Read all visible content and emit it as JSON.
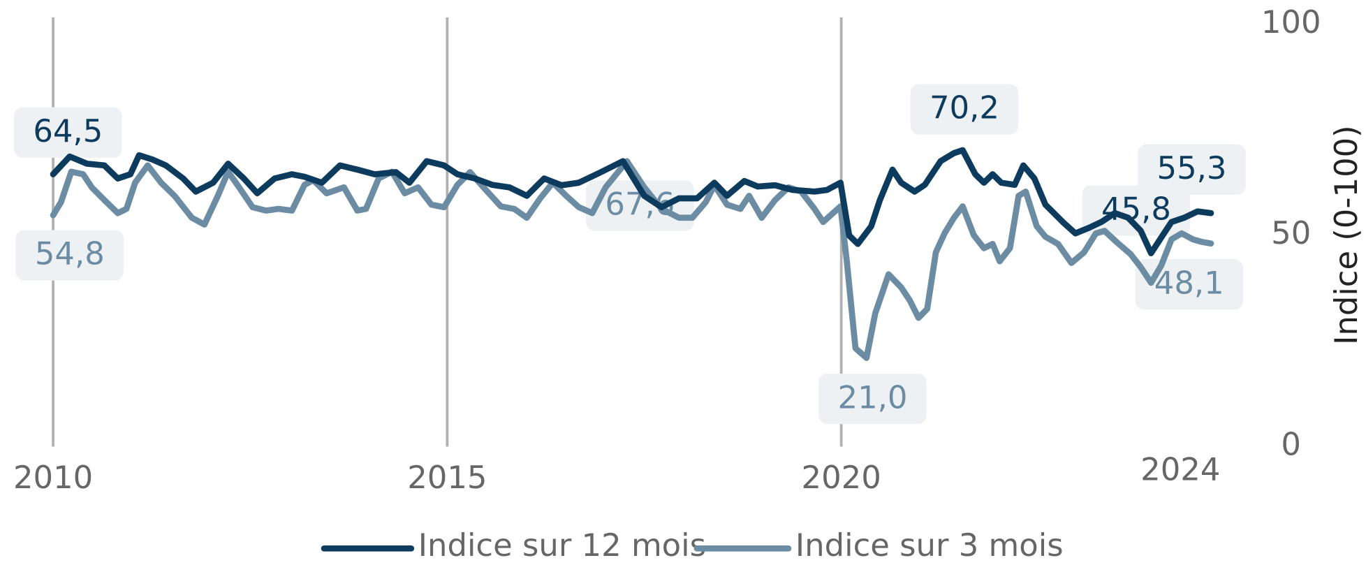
{
  "chart_data": {
    "type": "line",
    "y_axis_title": "Indice (0-100)",
    "ylim": [
      0,
      100
    ],
    "yticks": [
      0,
      50,
      100
    ],
    "y_axis_side": "right",
    "xlim": [
      2010,
      2024.69
    ],
    "xticks": [
      2010,
      2015,
      2020
    ],
    "x_end_label": "2024",
    "grid": "x",
    "legend": "bottom",
    "series": [
      {
        "name": "Indice sur 12 mois",
        "color": "#0d3b5e",
        "x": [
          2010,
          2010.21,
          2010.43,
          2010.65,
          2010.82,
          2010.98,
          2011.09,
          2011.26,
          2011.43,
          2011.65,
          2011.81,
          2012.03,
          2012.22,
          2012.42,
          2012.59,
          2012.81,
          2013.03,
          2013.19,
          2013.41,
          2013.64,
          2013.86,
          2014.08,
          2014.35,
          2014.52,
          2014.74,
          2014.96,
          2015.13,
          2015.35,
          2015.57,
          2015.79,
          2016.01,
          2016.23,
          2016.45,
          2016.67,
          2016.95,
          2017.23,
          2017.5,
          2017.72,
          2017.94,
          2018.17,
          2018.39,
          2018.55,
          2018.77,
          2018.94,
          2019.16,
          2019.38,
          2019.66,
          2019.82,
          2019.99,
          2020.1,
          2020.21,
          2020.38,
          2020.49,
          2020.65,
          2020.76,
          2020.93,
          2021.06,
          2021.26,
          2021.43,
          2021.54,
          2021.7,
          2021.81,
          2021.92,
          2022.03,
          2022.2,
          2022.31,
          2022.45,
          2022.59,
          2022.81,
          2022.97,
          2023.14,
          2023.3,
          2023.47,
          2023.64,
          2023.8,
          2023.93,
          2024.08,
          2024.19,
          2024.35,
          2024.52,
          2024.69
        ],
        "values": [
          64.5,
          68.7,
          67,
          66.6,
          63.5,
          64.5,
          69,
          68,
          66.6,
          63.5,
          60.4,
          62.5,
          67,
          63.5,
          60,
          63.5,
          64.5,
          63.9,
          62.5,
          66.6,
          65.6,
          64.5,
          65,
          62.5,
          67.6,
          66.6,
          64.5,
          63.5,
          62,
          61.4,
          59.4,
          63.5,
          61.9,
          62.5,
          65,
          67.6,
          59.4,
          56.7,
          58.8,
          58.8,
          62.5,
          59.4,
          62.9,
          61.6,
          61.9,
          60.8,
          60.4,
          60.8,
          62.5,
          50,
          48,
          52.2,
          58.4,
          65.6,
          62.5,
          60.4,
          62,
          67.6,
          69.5,
          70.2,
          64.5,
          62.5,
          64.5,
          62.5,
          62,
          66.6,
          63.5,
          57.3,
          53.2,
          50.5,
          51.8,
          53.2,
          55.3,
          54.2,
          51.1,
          45.8,
          50.1,
          53.2,
          54.2,
          55.7,
          55.3
        ],
        "value_labels": [
          "64,5",
          null,
          null,
          null,
          null,
          null,
          null,
          null,
          null,
          null,
          null,
          null,
          null,
          null,
          null,
          null,
          null,
          null,
          null,
          null,
          null,
          null,
          null,
          null,
          null,
          null,
          null,
          null,
          null,
          null,
          null,
          null,
          null,
          null,
          null,
          null,
          null,
          null,
          null,
          null,
          null,
          null,
          null,
          null,
          null,
          null,
          null,
          null,
          null,
          null,
          null,
          null,
          null,
          null,
          null,
          null,
          null,
          null,
          null,
          "70,2",
          null,
          null,
          null,
          null,
          null,
          null,
          null,
          null,
          null,
          null,
          null,
          null,
          null,
          null,
          null,
          "45,8",
          null,
          null,
          null,
          null,
          "55,3"
        ]
      },
      {
        "name": "Indice sur 3 mois",
        "color": "#6b8ca3",
        "x": [
          2010,
          2010.1,
          2010.23,
          2010.38,
          2010.49,
          2010.65,
          2010.82,
          2010.93,
          2011.04,
          2011.2,
          2011.37,
          2011.54,
          2011.76,
          2011.92,
          2012.09,
          2012.22,
          2012.36,
          2012.53,
          2012.7,
          2012.86,
          2013.03,
          2013.19,
          2013.3,
          2013.47,
          2013.69,
          2013.86,
          2013.97,
          2014.13,
          2014.3,
          2014.46,
          2014.63,
          2014.8,
          2014.96,
          2015.13,
          2015.29,
          2015.46,
          2015.68,
          2015.85,
          2016.01,
          2016.18,
          2016.34,
          2016.51,
          2016.67,
          2016.84,
          2017.01,
          2017.28,
          2017.5,
          2017.72,
          2017.94,
          2018.11,
          2018.28,
          2018.39,
          2018.55,
          2018.72,
          2018.83,
          2018.99,
          2019.16,
          2019.33,
          2019.49,
          2019.66,
          2019.77,
          2019.99,
          2020.07,
          2020.18,
          2020.32,
          2020.43,
          2020.6,
          2020.76,
          2020.87,
          2020.98,
          2021.09,
          2021.2,
          2021.31,
          2021.43,
          2021.54,
          2021.68,
          2021.81,
          2021.92,
          2022.01,
          2022.14,
          2022.25,
          2022.34,
          2022.48,
          2022.59,
          2022.75,
          2022.92,
          2023.08,
          2023.23,
          2023.34,
          2023.49,
          2023.67,
          2023.8,
          2023.93,
          2024.06,
          2024.19,
          2024.32,
          2024.46,
          2024.57,
          2024.69
        ],
        "values": [
          54.8,
          57.9,
          65.1,
          64.5,
          61.4,
          58.4,
          55.3,
          56.3,
          62.5,
          66.6,
          62.5,
          59.4,
          54.2,
          52.6,
          59.4,
          65.1,
          61.4,
          56.7,
          55.9,
          56.3,
          55.9,
          62,
          63.1,
          60,
          61.4,
          55.9,
          56.3,
          63.5,
          65.1,
          60,
          61.4,
          57.3,
          56.7,
          62,
          65,
          61.4,
          56.9,
          56.3,
          54.2,
          58.8,
          62.5,
          59.4,
          56.7,
          55.3,
          61.4,
          67.6,
          61.4,
          56.3,
          54.2,
          54.2,
          57.9,
          61.9,
          57.3,
          56.3,
          59.4,
          54.2,
          58.4,
          61.4,
          60.4,
          56.3,
          53.2,
          56.9,
          43.9,
          23.3,
          21,
          31.5,
          40.8,
          37.7,
          34.6,
          30.5,
          32.6,
          46,
          50.5,
          54.2,
          56.9,
          50.1,
          47,
          48,
          43.9,
          47,
          59.4,
          60.4,
          52.2,
          49.7,
          48,
          43.5,
          46,
          50.5,
          51.1,
          48.5,
          45.6,
          42.5,
          38.8,
          42.9,
          49.1,
          50.5,
          49.1,
          48.5,
          48.1
        ],
        "value_labels": [
          "54,8",
          null,
          null,
          null,
          null,
          null,
          null,
          null,
          null,
          null,
          null,
          null,
          null,
          null,
          null,
          null,
          null,
          null,
          null,
          null,
          null,
          null,
          null,
          null,
          null,
          null,
          null,
          null,
          null,
          null,
          null,
          null,
          null,
          null,
          null,
          null,
          null,
          null,
          null,
          null,
          null,
          null,
          null,
          null,
          null,
          "67,6",
          null,
          null,
          null,
          null,
          null,
          null,
          null,
          null,
          null,
          null,
          null,
          null,
          null,
          null,
          null,
          null,
          null,
          null,
          "21,0",
          null,
          null,
          null,
          null,
          null,
          null,
          null,
          null,
          null,
          null,
          null,
          null,
          null,
          null,
          null,
          null,
          null,
          null,
          null,
          null,
          null,
          null,
          null,
          null,
          null,
          null,
          null,
          null,
          null,
          null,
          null,
          null,
          null,
          "48,1"
        ]
      }
    ]
  }
}
